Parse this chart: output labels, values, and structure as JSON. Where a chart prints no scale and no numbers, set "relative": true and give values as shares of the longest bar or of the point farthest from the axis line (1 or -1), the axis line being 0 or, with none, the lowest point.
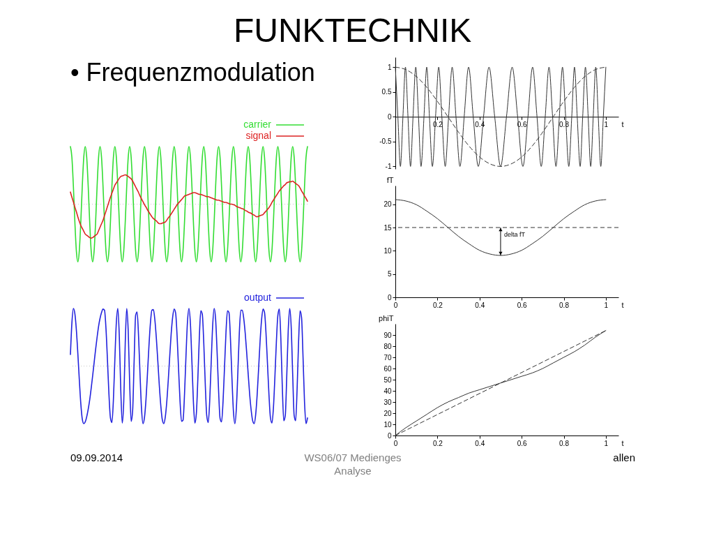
{
  "chart_data": [
    {
      "type": "line",
      "title": "FUNKTECHNIK",
      "subtitle": "• Frequenzmodulation",
      "relative": true,
      "legend": "top right",
      "annotations": [
        "09.09.2014",
        "WS06/07 Medienges",
        "Analyse",
        "allen"
      ],
      "ref_lines": [
        {
          "axis": "y",
          "value": 0,
          "color": "#c8c8c8",
          "line_style": "dotted"
        }
      ],
      "categories": [
        null,
        null,
        null,
        null,
        null,
        null,
        null,
        null,
        null,
        null,
        null,
        null,
        null,
        null,
        null,
        null,
        null,
        null,
        null,
        null,
        null,
        null,
        null,
        null,
        null,
        null,
        null,
        null,
        null,
        null,
        null,
        null,
        null,
        null,
        null,
        null,
        null,
        null,
        null,
        null,
        null,
        null,
        null,
        null,
        null,
        null,
        null,
        null,
        null,
        null,
        null,
        null,
        null,
        null,
        null,
        null,
        null,
        null,
        null,
        null,
        null,
        null,
        null,
        null,
        null,
        null,
        null,
        null,
        null,
        null,
        null,
        null,
        null,
        null,
        null,
        null,
        null,
        null,
        null,
        null,
        null,
        null,
        null,
        null,
        null,
        null,
        null,
        null,
        null,
        null,
        null,
        null,
        null,
        null,
        null,
        null,
        null,
        null,
        null,
        null,
        null,
        null,
        null,
        null,
        null,
        null,
        null,
        null,
        null,
        null,
        null,
        null,
        null,
        null,
        null,
        null,
        null,
        null,
        null,
        null,
        null,
        null,
        null,
        null,
        null,
        null,
        null,
        null,
        null,
        null,
        null,
        null,
        null,
        null,
        null,
        null,
        null,
        null,
        null,
        null,
        null,
        null,
        null,
        null,
        null,
        null,
        null,
        null,
        null,
        null,
        null,
        null,
        null,
        null,
        null,
        null,
        null,
        null,
        null,
        null,
        null
      ],
      "series": [
        {
          "name": "carrier",
          "color": "#33dd33",
          "values": [
            1,
            0.81,
            0.31,
            -0.31,
            -0.81,
            -1,
            -0.81,
            -0.31,
            0.31,
            0.81,
            1,
            0.81,
            0.31,
            -0.31,
            -0.81,
            -1,
            -0.81,
            -0.31,
            0.31,
            0.81,
            1,
            0.81,
            0.31,
            -0.31,
            -0.81,
            -1,
            -0.81,
            -0.31,
            0.31,
            0.81,
            1,
            0.81,
            0.31,
            -0.31,
            -0.81,
            -1,
            -0.81,
            -0.31,
            0.31,
            0.81,
            1,
            0.81,
            0.31,
            -0.31,
            -0.81,
            -1,
            -0.81,
            -0.31,
            0.31,
            0.81,
            1,
            0.81,
            0.31,
            -0.31,
            -0.81,
            -1,
            -0.81,
            -0.31,
            0.31,
            0.81,
            1,
            0.81,
            0.31,
            -0.31,
            -0.81,
            -1,
            -0.81,
            -0.31,
            0.31,
            0.81,
            1,
            0.81,
            0.31,
            -0.31,
            -0.81,
            -1,
            -0.81,
            -0.31,
            0.31,
            0.81,
            1,
            0.81,
            0.31,
            -0.31,
            -0.81,
            -1,
            -0.81,
            -0.31,
            0.31,
            0.81,
            1,
            0.81,
            0.31,
            -0.31,
            -0.81,
            -1,
            -0.81,
            -0.31,
            0.31,
            0.81,
            1,
            0.81,
            0.31,
            -0.31,
            -0.81,
            -1,
            -0.81,
            -0.31,
            0.31,
            0.81,
            1,
            0.81,
            0.31,
            -0.31,
            -0.81,
            -1,
            -0.81,
            -0.31,
            0.31,
            0.81,
            1,
            0.81,
            0.31,
            -0.31,
            -0.81,
            -1,
            -0.81,
            -0.31,
            0.31,
            0.81,
            1,
            0.81,
            0.31,
            -0.31,
            -0.81,
            -1,
            -0.81,
            -0.31,
            0.31,
            0.81,
            1,
            0.81,
            0.31,
            -0.31,
            -0.81,
            -1,
            -0.81,
            -0.31,
            0.31,
            0.81,
            1,
            0.81,
            0.31,
            -0.31,
            -0.81,
            -1,
            -0.81,
            -0.31,
            0.31,
            0.81,
            1
          ]
        },
        {
          "name": "signal",
          "color": "#dd2222",
          "values": [
            0.21,
            0.12,
            0.04,
            -0.05,
            -0.13,
            -0.22,
            -0.3,
            -0.37,
            -0.42,
            -0.47,
            -0.52,
            -0.54,
            -0.56,
            -0.58,
            -0.59,
            -0.58,
            -0.56,
            -0.54,
            -0.52,
            -0.46,
            -0.4,
            -0.34,
            -0.28,
            -0.2,
            -0.12,
            -0.04,
            0.04,
            0.12,
            0.19,
            0.26,
            0.33,
            0.37,
            0.41,
            0.45,
            0.48,
            0.49,
            0.5,
            0.51,
            0.5,
            0.48,
            0.46,
            0.44,
            0.4,
            0.35,
            0.3,
            0.25,
            0.2,
            0.14,
            0.09,
            0.04,
            -0.01,
            -0.05,
            -0.1,
            -0.14,
            -0.18,
            -0.22,
            -0.25,
            -0.27,
            -0.29,
            -0.32,
            -0.34,
            -0.34,
            -0.33,
            -0.32,
            -0.31,
            -0.28,
            -0.24,
            -0.21,
            -0.17,
            -0.13,
            -0.09,
            -0.05,
            -0.01,
            0.02,
            0.05,
            0.08,
            0.11,
            0.14,
            0.15,
            0.16,
            0.17,
            0.18,
            0.19,
            0.2,
            0.2,
            0.19,
            0.18,
            0.17,
            0.17,
            0.16,
            0.15,
            0.14,
            0.13,
            0.13,
            0.12,
            0.11,
            0.1,
            0.09,
            0.08,
            0.07,
            0.07,
            0.06,
            0.05,
            0.04,
            0.03,
            0.03,
            0.02,
            0.01,
            0,
            0,
            -0.01,
            -0.02,
            -0.04,
            -0.05,
            -0.06,
            -0.07,
            -0.08,
            -0.09,
            -0.11,
            -0.12,
            -0.14,
            -0.15,
            -0.16,
            -0.18,
            -0.19,
            -0.21,
            -0.22,
            -0.21,
            -0.2,
            -0.19,
            -0.18,
            -0.15,
            -0.12,
            -0.09,
            -0.06,
            -0.02,
            0.03,
            0.07,
            0.11,
            0.15,
            0.19,
            0.23,
            0.26,
            0.29,
            0.32,
            0.34,
            0.37,
            0.38,
            0.39,
            0.39,
            0.4,
            0.38,
            0.36,
            0.34,
            0.32,
            0.28,
            0.23,
            0.19,
            0.14,
            0.1,
            0.05
          ]
        }
      ]
    },
    {
      "type": "line",
      "relative": true,
      "legend": "top right",
      "ref_lines": [
        {
          "axis": "y",
          "value": 0,
          "color": "#c8c8c8",
          "line_style": "dotted"
        }
      ],
      "categories": [
        null,
        null,
        null,
        null,
        null,
        null,
        null,
        null,
        null,
        null,
        null,
        null,
        null,
        null,
        null,
        null,
        null,
        null,
        null,
        null,
        null,
        null,
        null,
        null,
        null,
        null,
        null,
        null,
        null,
        null,
        null,
        null,
        null,
        null,
        null,
        null,
        null,
        null,
        null,
        null,
        null,
        null,
        null,
        null,
        null,
        null,
        null,
        null,
        null,
        null,
        null,
        null,
        null,
        null,
        null,
        null,
        null,
        null,
        null,
        null,
        null,
        null,
        null,
        null,
        null,
        null,
        null,
        null,
        null,
        null,
        null,
        null,
        null,
        null,
        null,
        null,
        null,
        null,
        null,
        null,
        null,
        null,
        null,
        null,
        null,
        null,
        null,
        null,
        null,
        null,
        null,
        null,
        null,
        null,
        null,
        null,
        null,
        null,
        null,
        null,
        null,
        null,
        null,
        null,
        null,
        null,
        null,
        null,
        null,
        null,
        null,
        null,
        null,
        null,
        null,
        null,
        null,
        null,
        null,
        null,
        null,
        null,
        null,
        null,
        null,
        null,
        null,
        null,
        null,
        null,
        null,
        null,
        null,
        null,
        null,
        null,
        null,
        null,
        null,
        null,
        null,
        null,
        null,
        null,
        null,
        null,
        null,
        null,
        null,
        null,
        null,
        null,
        null,
        null,
        null,
        null,
        null,
        null,
        null,
        null,
        null
      ],
      "series": [
        {
          "name": "output",
          "color": "#2222dd",
          "values": [
            0.2,
            0.75,
            1,
            0.91,
            0.63,
            0.22,
            -0.24,
            -0.65,
            -0.92,
            -1,
            -0.97,
            -0.88,
            -0.75,
            -0.59,
            -0.39,
            -0.17,
            0.06,
            0.29,
            0.5,
            0.69,
            0.83,
            0.93,
            0.99,
            0.97,
            0.65,
            0.1,
            -0.49,
            -0.9,
            -0.98,
            -0.59,
            0.12,
            0.76,
            1,
            0.51,
            -0.43,
            -0.99,
            -0.61,
            0.4,
            1,
            0.61,
            -0.31,
            -0.96,
            -0.77,
            0.09,
            0.88,
            0.94,
            0.51,
            -0.16,
            -0.75,
            -1,
            -0.89,
            -0.58,
            -0.13,
            0.35,
            0.75,
            0.97,
            0.98,
            0.8,
            0.48,
            0.08,
            -0.34,
            -0.69,
            -0.93,
            -1,
            -0.89,
            -0.63,
            -0.26,
            0.16,
            0.56,
            0.85,
            0.99,
            0.92,
            0.52,
            -0.06,
            -0.62,
            -0.96,
            -0.94,
            -0.49,
            0.18,
            0.77,
            1,
            0.73,
            0.07,
            -0.62,
            -0.99,
            -0.82,
            -0.22,
            0.5,
            0.96,
            0.9,
            0.4,
            -0.31,
            -0.86,
            -0.98,
            -0.61,
            0.06,
            0.7,
            1,
            0.81,
            0.24,
            -0.43,
            -0.91,
            -0.97,
            -0.62,
            -0.02,
            0.59,
            0.96,
            0.93,
            0.48,
            -0.2,
            -0.78,
            -1,
            -0.73,
            -0.11,
            0.58,
            0.97,
            0.97,
            0.82,
            0.56,
            0.22,
            -0.15,
            -0.5,
            -0.77,
            -0.95,
            -1,
            -0.85,
            -0.51,
            -0.05,
            0.43,
            0.8,
            0.99,
            0.93,
            0.57,
            0.04,
            -0.5,
            -0.9,
            -0.99,
            -0.73,
            -0.19,
            0.42,
            0.88,
            0.99,
            0.49,
            -0.36,
            -0.95,
            -0.86,
            -0.18,
            0.62,
            1,
            0.68,
            -0.14,
            -0.86,
            -0.95,
            -0.39,
            0.43,
            0.96,
            0.84,
            0.15,
            -0.63,
            -1,
            -0.9
          ]
        }
      ]
    },
    {
      "type": "line",
      "xlabel": "t",
      "xlim": [
        0,
        1.06
      ],
      "ylim": [
        -1.05,
        1.2
      ],
      "xticks": [
        0.2,
        0.4,
        0.6,
        0.8,
        1
      ],
      "yticks": [
        -1,
        -0.5,
        0,
        0.5,
        1
      ],
      "series": [
        {
          "color": "#333333",
          "x": [
            0,
            0.012,
            0.024,
            0.036,
            0.048,
            0.06,
            0.072,
            0.084,
            0.097,
            0.11,
            0.122,
            0.136,
            0.149,
            0.162,
            0.176,
            0.191,
            0.206,
            0.221,
            0.237,
            0.253,
            0.27,
            0.288,
            0.307,
            0.327,
            0.348,
            0.37,
            0.394,
            0.419,
            0.445,
            0.472,
            0.5,
            0.528,
            0.555,
            0.581,
            0.606,
            0.63,
            0.652,
            0.673,
            0.693,
            0.712,
            0.73,
            0.747,
            0.763,
            0.779,
            0.794,
            0.809,
            0.824,
            0.838,
            0.851,
            0.864,
            0.878,
            0.89,
            0.903,
            0.916,
            0.928,
            0.94,
            0.952,
            0.964,
            0.976,
            0.988,
            1
          ],
          "values": [
            1,
            0,
            -1,
            0,
            1,
            0,
            -1,
            0,
            1,
            0,
            -1,
            0,
            1,
            0,
            -1,
            0,
            1,
            0,
            -1,
            0,
            1,
            0,
            -1,
            0,
            1,
            0,
            -1,
            0,
            1,
            0,
            -1,
            0,
            1,
            0,
            -1,
            0,
            1,
            0,
            -1,
            0,
            1,
            0,
            -1,
            0,
            1,
            0,
            -1,
            0,
            1,
            0,
            -1,
            0,
            1,
            0,
            -1,
            0,
            1,
            0,
            -1,
            0,
            1
          ]
        },
        {
          "color": "#333333",
          "line_style": "dashed",
          "x": [
            0,
            0.05,
            0.1,
            0.15,
            0.2,
            0.25,
            0.3,
            0.35,
            0.4,
            0.45,
            0.5,
            0.55,
            0.6,
            0.65,
            0.7,
            0.75,
            0.8,
            0.85,
            0.9,
            0.95,
            1
          ],
          "values": [
            1,
            0.95,
            0.81,
            0.59,
            0.31,
            0,
            -0.31,
            -0.59,
            -0.81,
            -0.95,
            -1,
            -0.95,
            -0.81,
            -0.59,
            -0.31,
            0,
            0.31,
            0.59,
            0.81,
            0.95,
            1
          ]
        }
      ]
    },
    {
      "type": "line",
      "xlabel": "t",
      "ylabel": "fT",
      "xlim": [
        0,
        1.06
      ],
      "ylim": [
        0,
        24
      ],
      "xticks": [
        0,
        0.2,
        0.4,
        0.6,
        0.8,
        1
      ],
      "yticks": [
        0,
        5,
        10,
        15,
        20
      ],
      "ref_lines": [
        {
          "axis": "y",
          "value": 15,
          "color": "#333333",
          "line_style": "dashed"
        }
      ],
      "annotations": [
        {
          "text": "delta fT",
          "x": 0.5,
          "y": 9
        }
      ],
      "x": [
        0,
        0.05,
        0.1,
        0.15,
        0.2,
        0.25,
        0.3,
        0.35,
        0.4,
        0.45,
        0.5,
        0.55,
        0.6,
        0.65,
        0.7,
        0.75,
        0.8,
        0.85,
        0.9,
        0.95,
        1
      ],
      "series": [
        {
          "color": "#333333",
          "values": [
            21,
            20.7,
            19.9,
            18.5,
            16.9,
            15,
            13.1,
            11.5,
            10.1,
            9.3,
            9,
            9.3,
            10.1,
            11.5,
            13.1,
            15,
            16.9,
            18.5,
            19.9,
            20.7,
            21
          ]
        }
      ]
    },
    {
      "type": "line",
      "xlabel": "t",
      "ylabel": "phiT",
      "xlim": [
        0,
        1.06
      ],
      "ylim": [
        0,
        100
      ],
      "xticks": [
        0,
        0.2,
        0.4,
        0.6,
        0.8,
        1
      ],
      "yticks": [
        0,
        10,
        20,
        30,
        40,
        50,
        60,
        70,
        80,
        90
      ],
      "series": [
        {
          "color": "#333333",
          "x": [
            0,
            0.05,
            0.1,
            0.15,
            0.2,
            0.25,
            0.3,
            0.35,
            0.4,
            0.45,
            0.5,
            0.55,
            0.6,
            0.65,
            0.7,
            0.75,
            0.8,
            0.85,
            0.9,
            0.95,
            1
          ],
          "values": [
            0,
            7,
            13,
            19,
            25,
            30,
            34,
            38,
            41,
            44,
            47,
            50,
            53,
            56,
            60,
            65,
            70,
            75,
            81,
            88,
            94
          ]
        },
        {
          "color": "#333333",
          "line_style": "dashed",
          "x": [
            0,
            1
          ],
          "values": [
            0,
            94
          ]
        }
      ]
    }
  ]
}
